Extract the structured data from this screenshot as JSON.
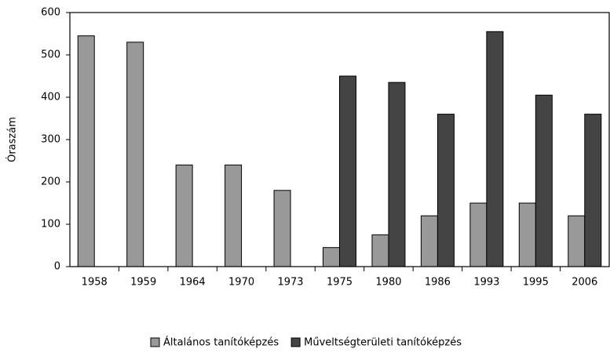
{
  "chart_data": {
    "type": "bar",
    "ylabel": "Óraszám",
    "categories": [
      "1958",
      "1959",
      "1964",
      "1970",
      "1973",
      "1975",
      "1980",
      "1986",
      "1993",
      "1995",
      "2006"
    ],
    "series": [
      {
        "name": "Általános tanítóképzés",
        "color": "#999999",
        "values": [
          545,
          530,
          240,
          240,
          180,
          45,
          75,
          120,
          150,
          150,
          120
        ]
      },
      {
        "name": "Műveltségterületi tanítóképzés",
        "color": "#444444",
        "values": [
          null,
          null,
          null,
          null,
          null,
          450,
          435,
          360,
          555,
          405,
          360
        ]
      }
    ],
    "ylim": [
      0,
      600
    ],
    "yticks": [
      0,
      100,
      200,
      300,
      400,
      500,
      600
    ],
    "legend": "bottom"
  }
}
